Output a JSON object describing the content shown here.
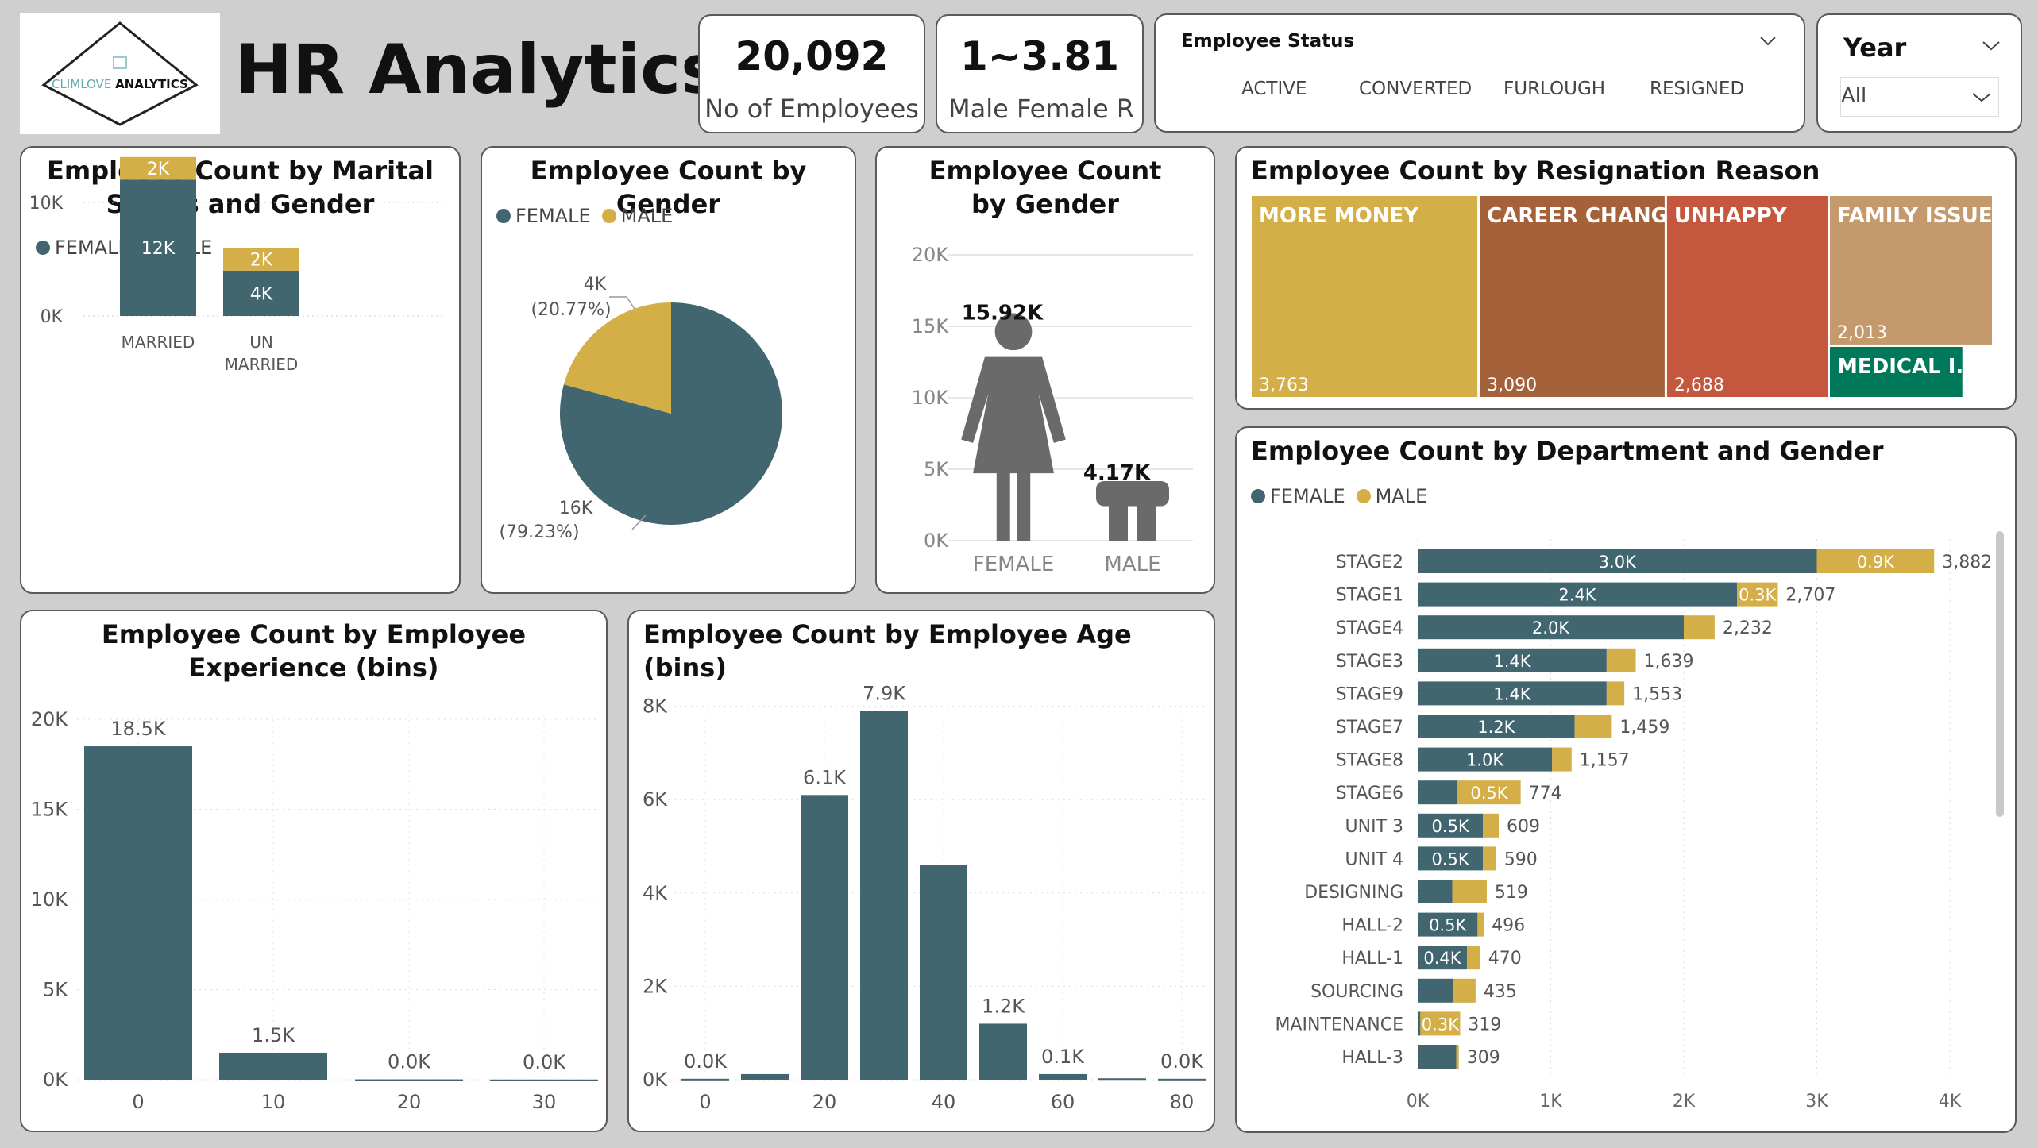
{
  "header": {
    "logo_text_1": "CLIMLOVE",
    "logo_text_2": "ANALYTICS",
    "title": "HR Analytics"
  },
  "kpis": [
    {
      "value": "20,092",
      "label": "No of Employees"
    },
    {
      "value": "1~3.81",
      "label": "Male Female R..."
    }
  ],
  "status_slicer": {
    "title": "Employee Status",
    "items": [
      "ACTIVE",
      "CONVERTED",
      "FURLOUGH",
      "RESIGNED"
    ]
  },
  "year_slicer": {
    "title": "Year",
    "selected": "All"
  },
  "colors": {
    "female": "#41666f",
    "male": "#d4ae46",
    "more_money": "#d4ae46",
    "career_change": "#a4613a",
    "unhappy": "#c5573e",
    "family_issue": "#c49a6c",
    "medical": "#00785a"
  },
  "legend": {
    "female": "FEMALE",
    "male": "MALE"
  },
  "charts": {
    "marital": {
      "title": "Employee Count by Marital Status and Gender",
      "chart_data": {
        "type": "bar",
        "stacked": true,
        "categories": [
          "MARRIED",
          "UN MARRIED"
        ],
        "series": [
          {
            "name": "FEMALE",
            "values": [
              12,
              4
            ],
            "labels": [
              "12K",
              "4K"
            ]
          },
          {
            "name": "MALE",
            "values": [
              2,
              2
            ],
            "labels": [
              "2K",
              "2K"
            ]
          }
        ],
        "ticks": [
          "0K",
          "10K"
        ],
        "ylim": [
          0,
          16
        ]
      }
    },
    "gender_pie": {
      "title": "Employee Count by Gender",
      "chart_data": {
        "type": "pie",
        "slices": [
          {
            "name": "FEMALE",
            "value": 79.23,
            "label": "16K",
            "pct": "(79.23%)"
          },
          {
            "name": "MALE",
            "value": 20.77,
            "label": "4K",
            "pct": "(20.77%)"
          }
        ]
      }
    },
    "gender_picto": {
      "title": "Employee Count by Gender",
      "chart_data": {
        "type": "bar",
        "categories": [
          "FEMALE",
          "MALE"
        ],
        "values": [
          15.92,
          4.17
        ],
        "labels": [
          "15.92K",
          "4.17K"
        ],
        "ticks": [
          "0K",
          "5K",
          "10K",
          "15K",
          "20K"
        ],
        "ylim": [
          0,
          20
        ]
      }
    },
    "resignation": {
      "title": "Employee Count by Resignation Reason",
      "chart_data": {
        "type": "treemap",
        "items": [
          {
            "name": "MORE MONEY",
            "value": 3763,
            "label": "3,763"
          },
          {
            "name": "CAREER CHANGE",
            "value": 3090,
            "label": "3,090"
          },
          {
            "name": "UNHAPPY",
            "value": 2688,
            "label": "2,688"
          },
          {
            "name": "FAMILY ISSUE",
            "value": 2013,
            "label": "2,013"
          },
          {
            "name": "MEDICAL I...",
            "value": 700,
            "label": ""
          }
        ]
      }
    },
    "department": {
      "title": "Employee Count by Department and Gender",
      "chart_data": {
        "type": "bar",
        "orientation": "horizontal",
        "stacked": true,
        "categories": [
          "STAGE2",
          "STAGE1",
          "STAGE4",
          "STAGE3",
          "STAGE9",
          "STAGE7",
          "STAGE8",
          "STAGE6",
          "UNIT 3",
          "UNIT 4",
          "DESIGNING",
          "HALL-2",
          "HALL-1",
          "SOURCING",
          "MAINTENANCE",
          "HALL-3"
        ],
        "series": [
          {
            "name": "FEMALE",
            "values": [
              3000,
              2400,
              2000,
              1420,
              1420,
              1180,
              1010,
              300,
              490,
              490,
              260,
              450,
              370,
              270,
              20,
              290
            ],
            "labels": [
              "3.0K",
              "2.4K",
              "2.0K",
              "1.4K",
              "1.4K",
              "1.2K",
              "1.0K",
              "",
              "0.5K",
              "0.5K",
              "",
              "0.5K",
              "0.4K",
              "",
              "",
              ""
            ]
          },
          {
            "name": "MALE",
            "values": [
              882,
              307,
              232,
              219,
              133,
              279,
              147,
              474,
              119,
              100,
              259,
              46,
              100,
              165,
              299,
              19
            ],
            "labels": [
              "0.9K",
              "0.3K",
              "",
              "",
              "",
              "",
              "",
              "0.5K",
              "",
              "",
              "",
              "",
              "",
              "",
              "0.3K",
              ""
            ]
          }
        ],
        "totals": [
          "3,882",
          "2,707",
          "2,232",
          "1,639",
          "1,553",
          "1,459",
          "1,157",
          "774",
          "609",
          "590",
          "519",
          "496",
          "470",
          "435",
          "319",
          "309"
        ],
        "ticks": [
          "0K",
          "1K",
          "2K",
          "3K",
          "4K"
        ],
        "xlim": [
          0,
          4000
        ]
      }
    },
    "experience": {
      "title": "Employee Count by Employee Experience (bins)",
      "chart_data": {
        "type": "bar",
        "categories": [
          "0",
          "10",
          "20",
          "30"
        ],
        "values": [
          18.5,
          1.5,
          0.02,
          0.01
        ],
        "labels": [
          "18.5K",
          "1.5K",
          "0.0K",
          "0.0K"
        ],
        "ticks": [
          "0K",
          "5K",
          "10K",
          "15K",
          "20K"
        ],
        "ylim": [
          0,
          20
        ]
      }
    },
    "age": {
      "title": "Employee Count by Employee Age (bins)",
      "chart_data": {
        "type": "bar",
        "x": [
          0,
          10,
          20,
          30,
          40,
          50,
          60,
          70,
          80
        ],
        "values": [
          0.02,
          0.12,
          6.1,
          7.9,
          4.6,
          1.2,
          0.12,
          0.03,
          0.02
        ],
        "labels": [
          "0.0K",
          "",
          "6.1K",
          "7.9K",
          "",
          "1.2K",
          "0.1K",
          "",
          "0.0K"
        ],
        "xticks": [
          "0",
          "20",
          "40",
          "60",
          "80"
        ],
        "ticks": [
          "0K",
          "2K",
          "4K",
          "6K",
          "8K"
        ],
        "ylim": [
          0,
          8
        ]
      }
    }
  }
}
